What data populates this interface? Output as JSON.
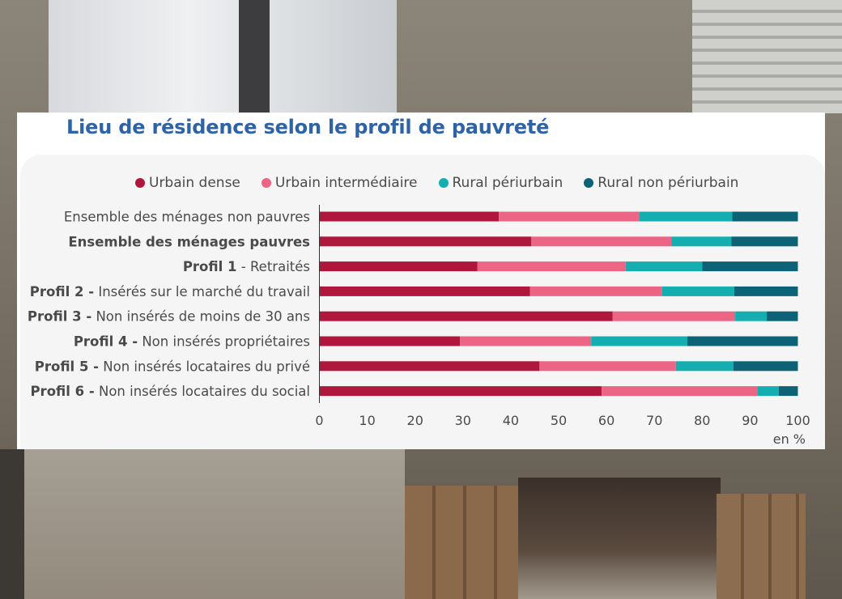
{
  "chart_data": {
    "type": "bar",
    "orientation": "horizontal",
    "stacked": true,
    "title": "Lieu de résidence selon le profil de pauvreté",
    "unit_label": "en %",
    "xlim": [
      0,
      100
    ],
    "x_ticks": [
      0,
      10,
      20,
      30,
      40,
      50,
      60,
      70,
      80,
      90,
      100
    ],
    "legend_position": "top",
    "grid": false,
    "categories": [
      {
        "bold": "",
        "text": "Ensemble des ménages non pauvres"
      },
      {
        "bold": "Ensemble des ménages pauvres",
        "text": ""
      },
      {
        "bold": "Profil 1",
        "text": " - Retraités"
      },
      {
        "bold": "Profil 2 -",
        "text": " Insérés sur le marché du travail"
      },
      {
        "bold": "Profil 3 -",
        "text": " Non insérés de moins de 30 ans"
      },
      {
        "bold": "Profil 4 -",
        "text": " Non insérés propriétaires"
      },
      {
        "bold": "Profil 5 -",
        "text": " Non insérés locataires du privé"
      },
      {
        "bold": "Profil 6 -",
        "text": " Non insérés locataires du social"
      }
    ],
    "series": [
      {
        "name": "Urbain dense",
        "color": "#b0173c",
        "values": [
          37.5,
          44.3,
          33.0,
          44.0,
          61.3,
          29.4,
          46.0,
          59.0
        ]
      },
      {
        "name": "Urbain intermédiaire",
        "color": "#ec6585",
        "values": [
          29.3,
          29.3,
          31.0,
          27.6,
          25.6,
          27.4,
          28.5,
          32.5
        ]
      },
      {
        "name": "Rural périurbain",
        "color": "#14aeb0",
        "values": [
          19.5,
          12.5,
          16.0,
          15.1,
          6.6,
          20.1,
          12.0,
          4.5
        ]
      },
      {
        "name": "Rural non périurbain",
        "color": "#0d6275",
        "values": [
          13.7,
          13.9,
          20.0,
          13.3,
          6.5,
          23.1,
          13.5,
          4.0
        ]
      }
    ]
  }
}
